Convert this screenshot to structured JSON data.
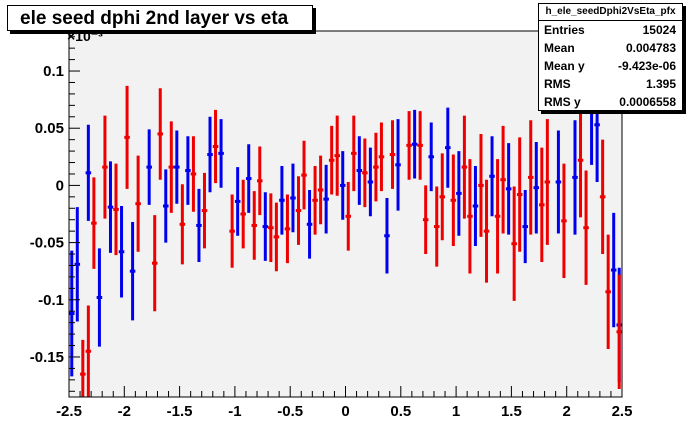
{
  "title": "ele seed dphi 2nd layer vs eta",
  "stats": {
    "name": "h_ele_seedDphi2VsEta_pfx",
    "rows": [
      {
        "label": "Entries",
        "value": "15024"
      },
      {
        "label": "Mean",
        "value": "0.004783"
      },
      {
        "label": "Mean y",
        "value": "-9.423e-06"
      },
      {
        "label": "RMS",
        "value": "1.395"
      },
      {
        "label": "RMS y",
        "value": "0.0006558"
      }
    ]
  },
  "colors": {
    "frame_bg": "#f2f2f2",
    "series_blue": "#0000ee",
    "series_red": "#ee0000"
  },
  "chart_data": {
    "type": "scatter",
    "title": "ele seed dphi 2nd layer vs eta",
    "xlim": [
      -2.5,
      2.5
    ],
    "ylim": [
      -0.185,
      0.135
    ],
    "y_exponent_label": "×10⁻³",
    "x_ticks": [
      "-2.5",
      "-2",
      "-1.5",
      "-1",
      "-0.5",
      "0",
      "0.5",
      "1",
      "1.5",
      "2",
      "2.5"
    ],
    "y_ticks": [
      "-0.15",
      "-0.1",
      "-0.05",
      "0",
      "0.05",
      "0.1"
    ],
    "grid": false,
    "legend": "none",
    "series": [
      {
        "color": "blue",
        "points": [
          {
            "x": -2.475,
            "y": -0.112,
            "err": 0.055
          },
          {
            "x": -2.425,
            "y": -0.069,
            "err": 0.05
          },
          {
            "x": -2.325,
            "y": 0.011,
            "err": 0.042
          },
          {
            "x": -2.225,
            "y": -0.098,
            "err": 0.043
          },
          {
            "x": -2.125,
            "y": -0.019,
            "err": 0.04
          },
          {
            "x": -2.025,
            "y": -0.058,
            "err": 0.04
          },
          {
            "x": -1.925,
            "y": -0.075,
            "err": 0.043
          },
          {
            "x": -1.775,
            "y": 0.016,
            "err": 0.033
          },
          {
            "x": -1.625,
            "y": -0.018,
            "err": 0.032
          },
          {
            "x": -1.525,
            "y": 0.016,
            "err": 0.032
          },
          {
            "x": -1.425,
            "y": 0.013,
            "err": 0.03
          },
          {
            "x": -1.325,
            "y": -0.035,
            "err": 0.032
          },
          {
            "x": -1.225,
            "y": 0.027,
            "err": 0.033
          },
          {
            "x": -1.125,
            "y": 0.028,
            "err": 0.03
          },
          {
            "x": -0.975,
            "y": -0.014,
            "err": 0.03
          },
          {
            "x": -0.875,
            "y": 0.006,
            "err": 0.03
          },
          {
            "x": -0.725,
            "y": -0.036,
            "err": 0.03
          },
          {
            "x": -0.575,
            "y": -0.013,
            "err": 0.03
          },
          {
            "x": -0.475,
            "y": -0.011,
            "err": 0.03
          },
          {
            "x": -0.325,
            "y": -0.034,
            "err": 0.03
          },
          {
            "x": -0.175,
            "y": -0.012,
            "err": 0.03
          },
          {
            "x": -0.025,
            "y": 0.0,
            "err": 0.03
          },
          {
            "x": 0.125,
            "y": 0.013,
            "err": 0.03
          },
          {
            "x": 0.225,
            "y": 0.003,
            "err": 0.03
          },
          {
            "x": 0.375,
            "y": -0.044,
            "err": 0.033
          },
          {
            "x": 0.475,
            "y": 0.018,
            "err": 0.04
          },
          {
            "x": 0.625,
            "y": 0.036,
            "err": 0.03
          },
          {
            "x": 0.775,
            "y": 0.025,
            "err": 0.03
          },
          {
            "x": 0.925,
            "y": 0.033,
            "err": 0.035
          },
          {
            "x": 1.025,
            "y": -0.007,
            "err": 0.037
          },
          {
            "x": 1.175,
            "y": -0.018,
            "err": 0.035
          },
          {
            "x": 1.325,
            "y": 0.008,
            "err": 0.035
          },
          {
            "x": 1.475,
            "y": -0.003,
            "err": 0.04
          },
          {
            "x": 1.625,
            "y": -0.036,
            "err": 0.032
          },
          {
            "x": 1.725,
            "y": -0.002,
            "err": 0.04
          },
          {
            "x": 1.925,
            "y": 0.003,
            "err": 0.045
          },
          {
            "x": 2.075,
            "y": 0.007,
            "err": 0.05
          },
          {
            "x": 2.225,
            "y": 0.068,
            "err": 0.05
          },
          {
            "x": 2.275,
            "y": 0.053,
            "err": 0.05
          },
          {
            "x": 2.425,
            "y": -0.074,
            "err": 0.05
          },
          {
            "x": 2.475,
            "y": -0.122,
            "err": 0.05
          }
        ]
      },
      {
        "color": "red",
        "points": [
          {
            "x": -2.375,
            "y": -0.165,
            "err": 0.03
          },
          {
            "x": -2.325,
            "y": -0.145,
            "err": 0.04
          },
          {
            "x": -2.275,
            "y": -0.033,
            "err": 0.04
          },
          {
            "x": -2.175,
            "y": 0.016,
            "err": 0.045
          },
          {
            "x": -2.075,
            "y": -0.021,
            "err": 0.04
          },
          {
            "x": -1.975,
            "y": 0.042,
            "err": 0.045
          },
          {
            "x": -1.875,
            "y": -0.016,
            "err": 0.042
          },
          {
            "x": -1.725,
            "y": -0.068,
            "err": 0.042
          },
          {
            "x": -1.675,
            "y": 0.045,
            "err": 0.04
          },
          {
            "x": -1.575,
            "y": 0.016,
            "err": 0.04
          },
          {
            "x": -1.475,
            "y": -0.034,
            "err": 0.035
          },
          {
            "x": -1.375,
            "y": 0.01,
            "err": 0.033
          },
          {
            "x": -1.275,
            "y": -0.022,
            "err": 0.033
          },
          {
            "x": -1.175,
            "y": 0.034,
            "err": 0.032
          },
          {
            "x": -1.025,
            "y": -0.04,
            "err": 0.032
          },
          {
            "x": -0.925,
            "y": -0.025,
            "err": 0.03
          },
          {
            "x": -0.825,
            "y": -0.035,
            "err": 0.03
          },
          {
            "x": -0.775,
            "y": 0.004,
            "err": 0.03
          },
          {
            "x": -0.675,
            "y": -0.037,
            "err": 0.03
          },
          {
            "x": -0.625,
            "y": -0.045,
            "err": 0.03
          },
          {
            "x": -0.525,
            "y": -0.038,
            "err": 0.03
          },
          {
            "x": -0.425,
            "y": -0.022,
            "err": 0.03
          },
          {
            "x": -0.375,
            "y": 0.009,
            "err": 0.03
          },
          {
            "x": -0.275,
            "y": -0.013,
            "err": 0.03
          },
          {
            "x": -0.225,
            "y": -0.004,
            "err": 0.03
          },
          {
            "x": -0.125,
            "y": 0.022,
            "err": 0.03
          },
          {
            "x": -0.075,
            "y": 0.026,
            "err": 0.035
          },
          {
            "x": 0.025,
            "y": -0.027,
            "err": 0.03
          },
          {
            "x": 0.075,
            "y": 0.028,
            "err": 0.033
          },
          {
            "x": 0.175,
            "y": 0.011,
            "err": 0.03
          },
          {
            "x": 0.275,
            "y": 0.016,
            "err": 0.03
          },
          {
            "x": 0.325,
            "y": 0.025,
            "err": 0.03
          },
          {
            "x": 0.425,
            "y": 0.027,
            "err": 0.03
          },
          {
            "x": 0.575,
            "y": 0.035,
            "err": 0.03
          },
          {
            "x": 0.675,
            "y": 0.035,
            "err": 0.03
          },
          {
            "x": 0.725,
            "y": -0.03,
            "err": 0.03
          },
          {
            "x": 0.825,
            "y": -0.036,
            "err": 0.035
          },
          {
            "x": 0.875,
            "y": -0.01,
            "err": 0.038
          },
          {
            "x": 0.975,
            "y": -0.013,
            "err": 0.04
          },
          {
            "x": 1.075,
            "y": 0.016,
            "err": 0.045
          },
          {
            "x": 1.125,
            "y": -0.027,
            "err": 0.05
          },
          {
            "x": 1.225,
            "y": 0.0,
            "err": 0.045
          },
          {
            "x": 1.275,
            "y": -0.04,
            "err": 0.045
          },
          {
            "x": 1.375,
            "y": -0.027,
            "err": 0.05
          },
          {
            "x": 1.425,
            "y": 0.005,
            "err": 0.047
          },
          {
            "x": 1.525,
            "y": -0.051,
            "err": 0.05
          },
          {
            "x": 1.575,
            "y": -0.008,
            "err": 0.05
          },
          {
            "x": 1.675,
            "y": 0.007,
            "err": 0.05
          },
          {
            "x": 1.775,
            "y": -0.017,
            "err": 0.05
          },
          {
            "x": 1.825,
            "y": 0.003,
            "err": 0.055
          },
          {
            "x": 1.975,
            "y": -0.031,
            "err": 0.05
          },
          {
            "x": 2.125,
            "y": 0.022,
            "err": 0.05
          },
          {
            "x": 2.175,
            "y": -0.037,
            "err": 0.05
          },
          {
            "x": 2.325,
            "y": -0.01,
            "err": 0.05
          },
          {
            "x": 2.375,
            "y": -0.093,
            "err": 0.05
          },
          {
            "x": 2.475,
            "y": -0.128,
            "err": 0.05
          }
        ]
      }
    ]
  }
}
